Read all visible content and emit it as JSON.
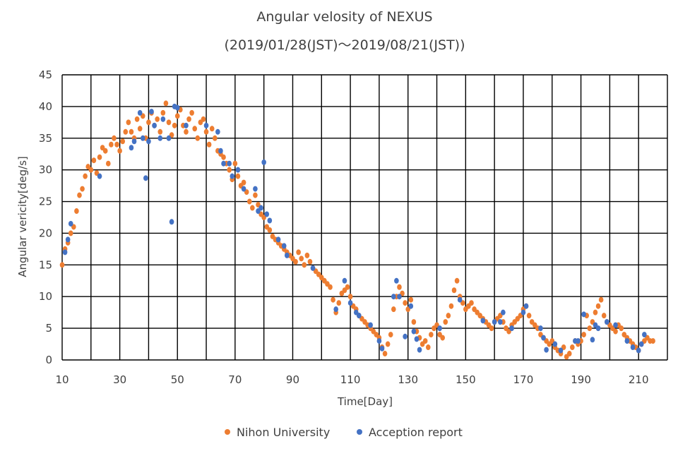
{
  "chart_data": {
    "type": "scatter",
    "title": "Angular velosity of NEXUS",
    "subtitle": "(2019/01/28(JST)～2019/08/21(JST))",
    "xlabel": "Time[Day]",
    "ylabel": "Angular vericity[deg/s]",
    "xlim": [
      10,
      220
    ],
    "ylim": [
      0,
      45
    ],
    "x_ticks": [
      10,
      30,
      50,
      70,
      90,
      110,
      130,
      150,
      170,
      190,
      210
    ],
    "y_ticks": [
      0,
      5,
      10,
      15,
      20,
      25,
      30,
      35,
      40,
      45
    ],
    "grid": true,
    "legend_position": "bottom",
    "series": [
      {
        "name": "Nihon University",
        "color": "#ED7D31",
        "points": [
          [
            10,
            15
          ],
          [
            11,
            17.5
          ],
          [
            12,
            18.5
          ],
          [
            13,
            20
          ],
          [
            14,
            21
          ],
          [
            15,
            23.5
          ],
          [
            16,
            26
          ],
          [
            17,
            27
          ],
          [
            18,
            29
          ],
          [
            19,
            30.5
          ],
          [
            20,
            30
          ],
          [
            21,
            31.5
          ],
          [
            22,
            29.5
          ],
          [
            23,
            32
          ],
          [
            24,
            33.5
          ],
          [
            25,
            33
          ],
          [
            26,
            31
          ],
          [
            27,
            34
          ],
          [
            28,
            35
          ],
          [
            29,
            34
          ],
          [
            30,
            33
          ],
          [
            31,
            34.5
          ],
          [
            32,
            36
          ],
          [
            33,
            37.5
          ],
          [
            34,
            36
          ],
          [
            35,
            35
          ],
          [
            36,
            38
          ],
          [
            37,
            36.5
          ],
          [
            38,
            38.5
          ],
          [
            39,
            35
          ],
          [
            40,
            37.5
          ],
          [
            41,
            39
          ],
          [
            42,
            37
          ],
          [
            43,
            38
          ],
          [
            44,
            36
          ],
          [
            45,
            39
          ],
          [
            46,
            40.5
          ],
          [
            47,
            37.5
          ],
          [
            48,
            35.5
          ],
          [
            49,
            37
          ],
          [
            50,
            38.5
          ],
          [
            51,
            39.5
          ],
          [
            52,
            37
          ],
          [
            53,
            36
          ],
          [
            54,
            38
          ],
          [
            55,
            39
          ],
          [
            56,
            36.5
          ],
          [
            57,
            35
          ],
          [
            58,
            37.5
          ],
          [
            59,
            38
          ],
          [
            60,
            36
          ],
          [
            61,
            34
          ],
          [
            62,
            36.5
          ],
          [
            63,
            35
          ],
          [
            64,
            33
          ],
          [
            65,
            32.5
          ],
          [
            66,
            32
          ],
          [
            67,
            31
          ],
          [
            68,
            30
          ],
          [
            69,
            28.5
          ],
          [
            70,
            31
          ],
          [
            71,
            29
          ],
          [
            72,
            27.5
          ],
          [
            73,
            28
          ],
          [
            74,
            26.5
          ],
          [
            75,
            25
          ],
          [
            76,
            24
          ],
          [
            77,
            26
          ],
          [
            78,
            24.5
          ],
          [
            79,
            23
          ],
          [
            80,
            22.5
          ],
          [
            81,
            21
          ],
          [
            82,
            20.5
          ],
          [
            83,
            19.5
          ],
          [
            84,
            19
          ],
          [
            85,
            18.5
          ],
          [
            86,
            18
          ],
          [
            87,
            17.5
          ],
          [
            88,
            17
          ],
          [
            89,
            16.5
          ],
          [
            90,
            16
          ],
          [
            91,
            15.5
          ],
          [
            92,
            17
          ],
          [
            93,
            16
          ],
          [
            94,
            15
          ],
          [
            95,
            16.5
          ],
          [
            96,
            15.5
          ],
          [
            97,
            14.5
          ],
          [
            98,
            14
          ],
          [
            99,
            13.5
          ],
          [
            100,
            13
          ],
          [
            101,
            12.5
          ],
          [
            102,
            12
          ],
          [
            103,
            11.5
          ],
          [
            104,
            9.5
          ],
          [
            105,
            7.5
          ],
          [
            106,
            9
          ],
          [
            107,
            10.5
          ],
          [
            108,
            11
          ],
          [
            109,
            11.5
          ],
          [
            110,
            10
          ],
          [
            111,
            8.5
          ],
          [
            112,
            8
          ],
          [
            113,
            7
          ],
          [
            114,
            6.5
          ],
          [
            115,
            6
          ],
          [
            116,
            5.5
          ],
          [
            117,
            5
          ],
          [
            118,
            4.5
          ],
          [
            119,
            4
          ],
          [
            120,
            3.5
          ],
          [
            121,
            2
          ],
          [
            122,
            1
          ],
          [
            123,
            2.5
          ],
          [
            124,
            4
          ],
          [
            125,
            8
          ],
          [
            126,
            10
          ],
          [
            127,
            11.5
          ],
          [
            128,
            10.5
          ],
          [
            129,
            9
          ],
          [
            130,
            8
          ],
          [
            131,
            9.5
          ],
          [
            132,
            6
          ],
          [
            133,
            4.5
          ],
          [
            134,
            3.5
          ],
          [
            135,
            2.5
          ],
          [
            136,
            3
          ],
          [
            137,
            2
          ],
          [
            138,
            4
          ],
          [
            139,
            5
          ],
          [
            140,
            5.5
          ],
          [
            141,
            4
          ],
          [
            142,
            3.5
          ],
          [
            143,
            6
          ],
          [
            144,
            7
          ],
          [
            145,
            8.5
          ],
          [
            146,
            11
          ],
          [
            147,
            12.5
          ],
          [
            148,
            10
          ],
          [
            149,
            9
          ],
          [
            150,
            8
          ],
          [
            151,
            8.5
          ],
          [
            152,
            9
          ],
          [
            153,
            8
          ],
          [
            154,
            7.5
          ],
          [
            155,
            7
          ],
          [
            156,
            6.5
          ],
          [
            157,
            6
          ],
          [
            158,
            5.5
          ],
          [
            159,
            5
          ],
          [
            160,
            6
          ],
          [
            161,
            6.5
          ],
          [
            162,
            7
          ],
          [
            163,
            6
          ],
          [
            164,
            5
          ],
          [
            165,
            4.5
          ],
          [
            166,
            5.5
          ],
          [
            167,
            6
          ],
          [
            168,
            6.5
          ],
          [
            169,
            7
          ],
          [
            170,
            8
          ],
          [
            171,
            8.5
          ],
          [
            172,
            7
          ],
          [
            173,
            6
          ],
          [
            174,
            5.5
          ],
          [
            175,
            5
          ],
          [
            176,
            4
          ],
          [
            177,
            3.5
          ],
          [
            178,
            3
          ],
          [
            179,
            2.5
          ],
          [
            180,
            3
          ],
          [
            181,
            2
          ],
          [
            182,
            1.5
          ],
          [
            183,
            1
          ],
          [
            184,
            2
          ],
          [
            185,
            0.5
          ],
          [
            186,
            1
          ],
          [
            187,
            2
          ],
          [
            188,
            3
          ],
          [
            189,
            2.5
          ],
          [
            190,
            3
          ],
          [
            191,
            4
          ],
          [
            192,
            7
          ],
          [
            193,
            5
          ],
          [
            194,
            6
          ],
          [
            195,
            7.5
          ],
          [
            196,
            8.5
          ],
          [
            197,
            9.5
          ],
          [
            198,
            7
          ],
          [
            199,
            6
          ],
          [
            200,
            5.5
          ],
          [
            201,
            5
          ],
          [
            202,
            4.5
          ],
          [
            203,
            5.5
          ],
          [
            204,
            5
          ],
          [
            205,
            4
          ],
          [
            206,
            3.5
          ],
          [
            207,
            3
          ],
          [
            208,
            2.5
          ],
          [
            209,
            2
          ],
          [
            210,
            1.5
          ],
          [
            211,
            2.5
          ],
          [
            212,
            3
          ],
          [
            213,
            3.5
          ],
          [
            214,
            3
          ],
          [
            215,
            3
          ]
        ]
      },
      {
        "name": "Acception report",
        "color": "#4472C4",
        "points": [
          [
            11,
            17
          ],
          [
            12,
            19
          ],
          [
            13,
            21.5
          ],
          [
            23,
            29
          ],
          [
            34,
            33.5
          ],
          [
            35,
            34.5
          ],
          [
            37,
            39
          ],
          [
            38,
            35
          ],
          [
            39,
            28.7
          ],
          [
            40,
            34.5
          ],
          [
            41,
            39.2
          ],
          [
            42,
            37
          ],
          [
            44,
            35
          ],
          [
            45,
            38
          ],
          [
            47,
            35
          ],
          [
            48,
            21.8
          ],
          [
            49,
            40
          ],
          [
            50,
            39.8
          ],
          [
            53,
            37
          ],
          [
            60,
            37
          ],
          [
            64,
            36
          ],
          [
            65,
            33
          ],
          [
            66,
            31
          ],
          [
            68,
            31
          ],
          [
            69,
            29
          ],
          [
            71,
            30
          ],
          [
            73,
            27
          ],
          [
            77,
            27
          ],
          [
            78,
            23.5
          ],
          [
            79,
            24
          ],
          [
            80,
            31.2
          ],
          [
            81,
            23
          ],
          [
            82,
            22
          ],
          [
            85,
            19
          ],
          [
            87,
            18
          ],
          [
            88,
            16.5
          ],
          [
            97,
            14.5
          ],
          [
            105,
            8
          ],
          [
            108,
            12.5
          ],
          [
            110,
            9
          ],
          [
            112,
            7.5
          ],
          [
            113,
            7
          ],
          [
            117,
            5.5
          ],
          [
            120,
            3
          ],
          [
            121,
            1.8
          ],
          [
            125,
            10
          ],
          [
            126,
            12.5
          ],
          [
            127,
            10
          ],
          [
            129,
            3.7
          ],
          [
            131,
            8.5
          ],
          [
            132,
            4.5
          ],
          [
            133,
            3.3
          ],
          [
            134,
            1.6
          ],
          [
            141,
            5
          ],
          [
            148,
            9.5
          ],
          [
            156,
            6.2
          ],
          [
            160,
            6
          ],
          [
            162,
            6
          ],
          [
            163,
            7.5
          ],
          [
            166,
            5
          ],
          [
            170,
            7.5
          ],
          [
            171,
            8.5
          ],
          [
            176,
            5
          ],
          [
            177,
            3.5
          ],
          [
            178,
            1.6
          ],
          [
            181,
            2.5
          ],
          [
            183,
            1.5
          ],
          [
            188,
            3
          ],
          [
            189,
            3
          ],
          [
            191,
            7.2
          ],
          [
            194,
            3.2
          ],
          [
            195,
            5.5
          ],
          [
            196,
            5
          ],
          [
            199,
            6
          ],
          [
            202,
            5.5
          ],
          [
            206,
            3
          ],
          [
            208,
            2
          ],
          [
            210,
            1.5
          ],
          [
            211,
            2.5
          ],
          [
            212,
            4
          ]
        ]
      }
    ]
  }
}
